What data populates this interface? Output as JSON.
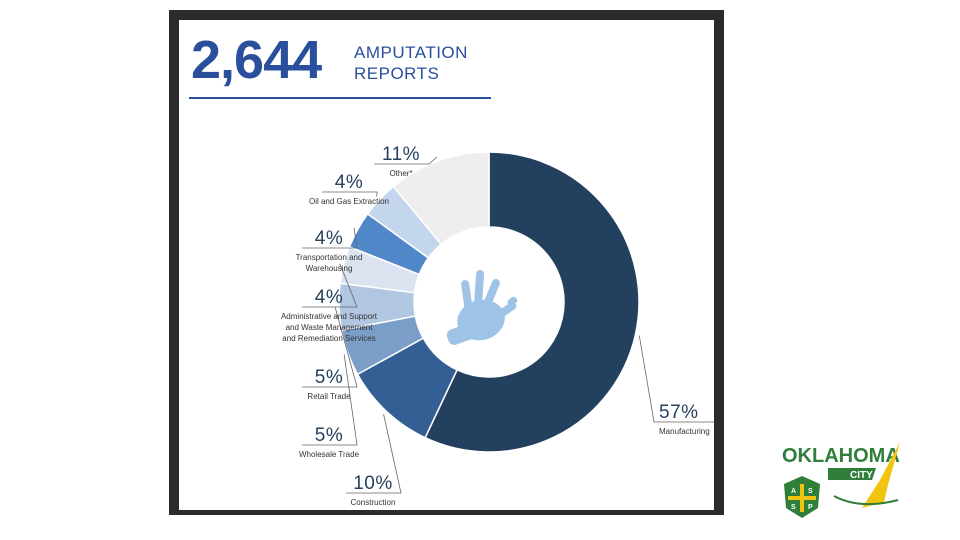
{
  "header": {
    "total": "2,644",
    "label_line1": "AMPUTATION",
    "label_line2": "REPORTS"
  },
  "chart_data": {
    "type": "pie",
    "donut": true,
    "center_icon": "hand-icon",
    "categories": [
      "Manufacturing",
      "Construction",
      "Wholesale Trade",
      "Retail Trade",
      "Administrative and Support and Waste Management and Remediation Services",
      "Transportation and Warehousing",
      "Oil and Gas Extraction",
      "Other*"
    ],
    "values": [
      57,
      10,
      5,
      5,
      4,
      4,
      4,
      11
    ],
    "value_labels": [
      "57%",
      "10%",
      "5%",
      "5%",
      "4%",
      "4%",
      "4%",
      "11%"
    ],
    "label_lines": [
      [
        "Manufacturing"
      ],
      [
        "Construction"
      ],
      [
        "Wholesale Trade"
      ],
      [
        "Retail Trade"
      ],
      [
        "Administrative and Support",
        "and Waste Management",
        "and Remediation Services"
      ],
      [
        "Transportation and",
        "Warehousing"
      ],
      [
        "Oil and Gas Extraction"
      ],
      [
        "Other*"
      ]
    ],
    "colors": [
      "#24405f",
      "#345f94",
      "#7b9ec9",
      "#b0c6e1",
      "#dae3ef",
      "#4f87c8",
      "#c4d6ee",
      "#eeeeee"
    ]
  },
  "logo": {
    "word": "OKLAHOMA",
    "city": "CITY",
    "badge_letters": [
      "A",
      "S",
      "S",
      "P"
    ],
    "colors": {
      "green": "#2f7f3a",
      "yellow": "#f1c40f"
    }
  }
}
